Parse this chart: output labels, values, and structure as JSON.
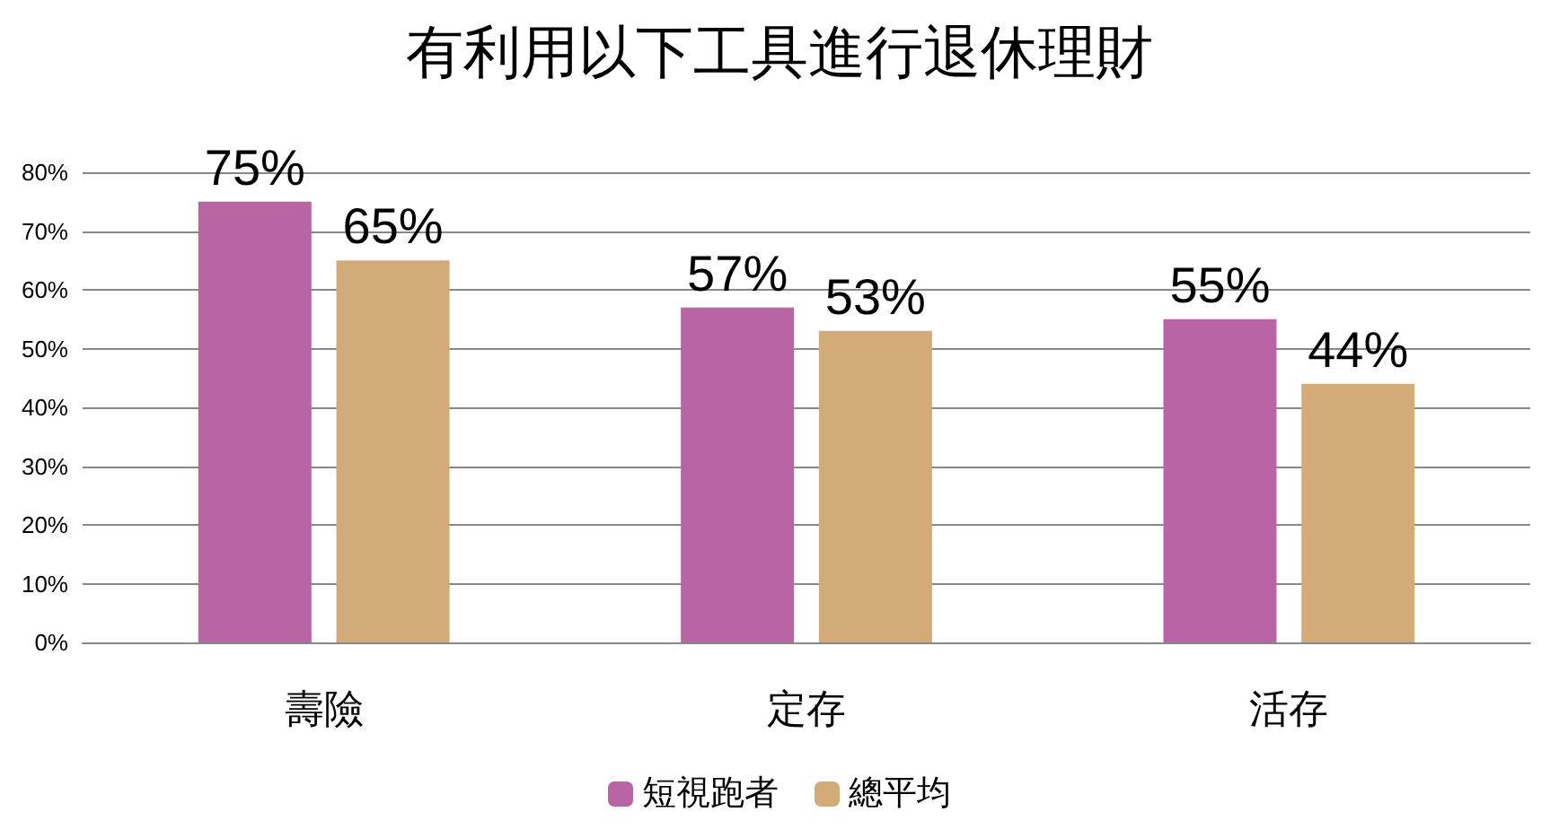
{
  "chart_data": {
    "type": "bar",
    "title": "有利用以下工具進行退休理財",
    "categories": [
      "壽險",
      "定存",
      "活存"
    ],
    "series": [
      {
        "name": "短視跑者",
        "color": "#b965a5",
        "values": [
          75,
          57,
          55
        ],
        "value_labels": [
          "75%",
          "57%",
          "55%"
        ]
      },
      {
        "name": "總平均",
        "color": "#d2ab79",
        "values": [
          65,
          53,
          44
        ],
        "value_labels": [
          "65%",
          "53%",
          "44%"
        ]
      }
    ],
    "ylim": [
      0,
      80
    ],
    "yticks": [
      {
        "value": 0,
        "label": "0%"
      },
      {
        "value": 10,
        "label": "10%"
      },
      {
        "value": 20,
        "label": "20%"
      },
      {
        "value": 30,
        "label": "30%"
      },
      {
        "value": 40,
        "label": "40%"
      },
      {
        "value": 50,
        "label": "50%"
      },
      {
        "value": 60,
        "label": "60%"
      },
      {
        "value": 70,
        "label": "70%"
      },
      {
        "value": 80,
        "label": "80%"
      }
    ],
    "grid": "y",
    "legend": "bottom"
  }
}
